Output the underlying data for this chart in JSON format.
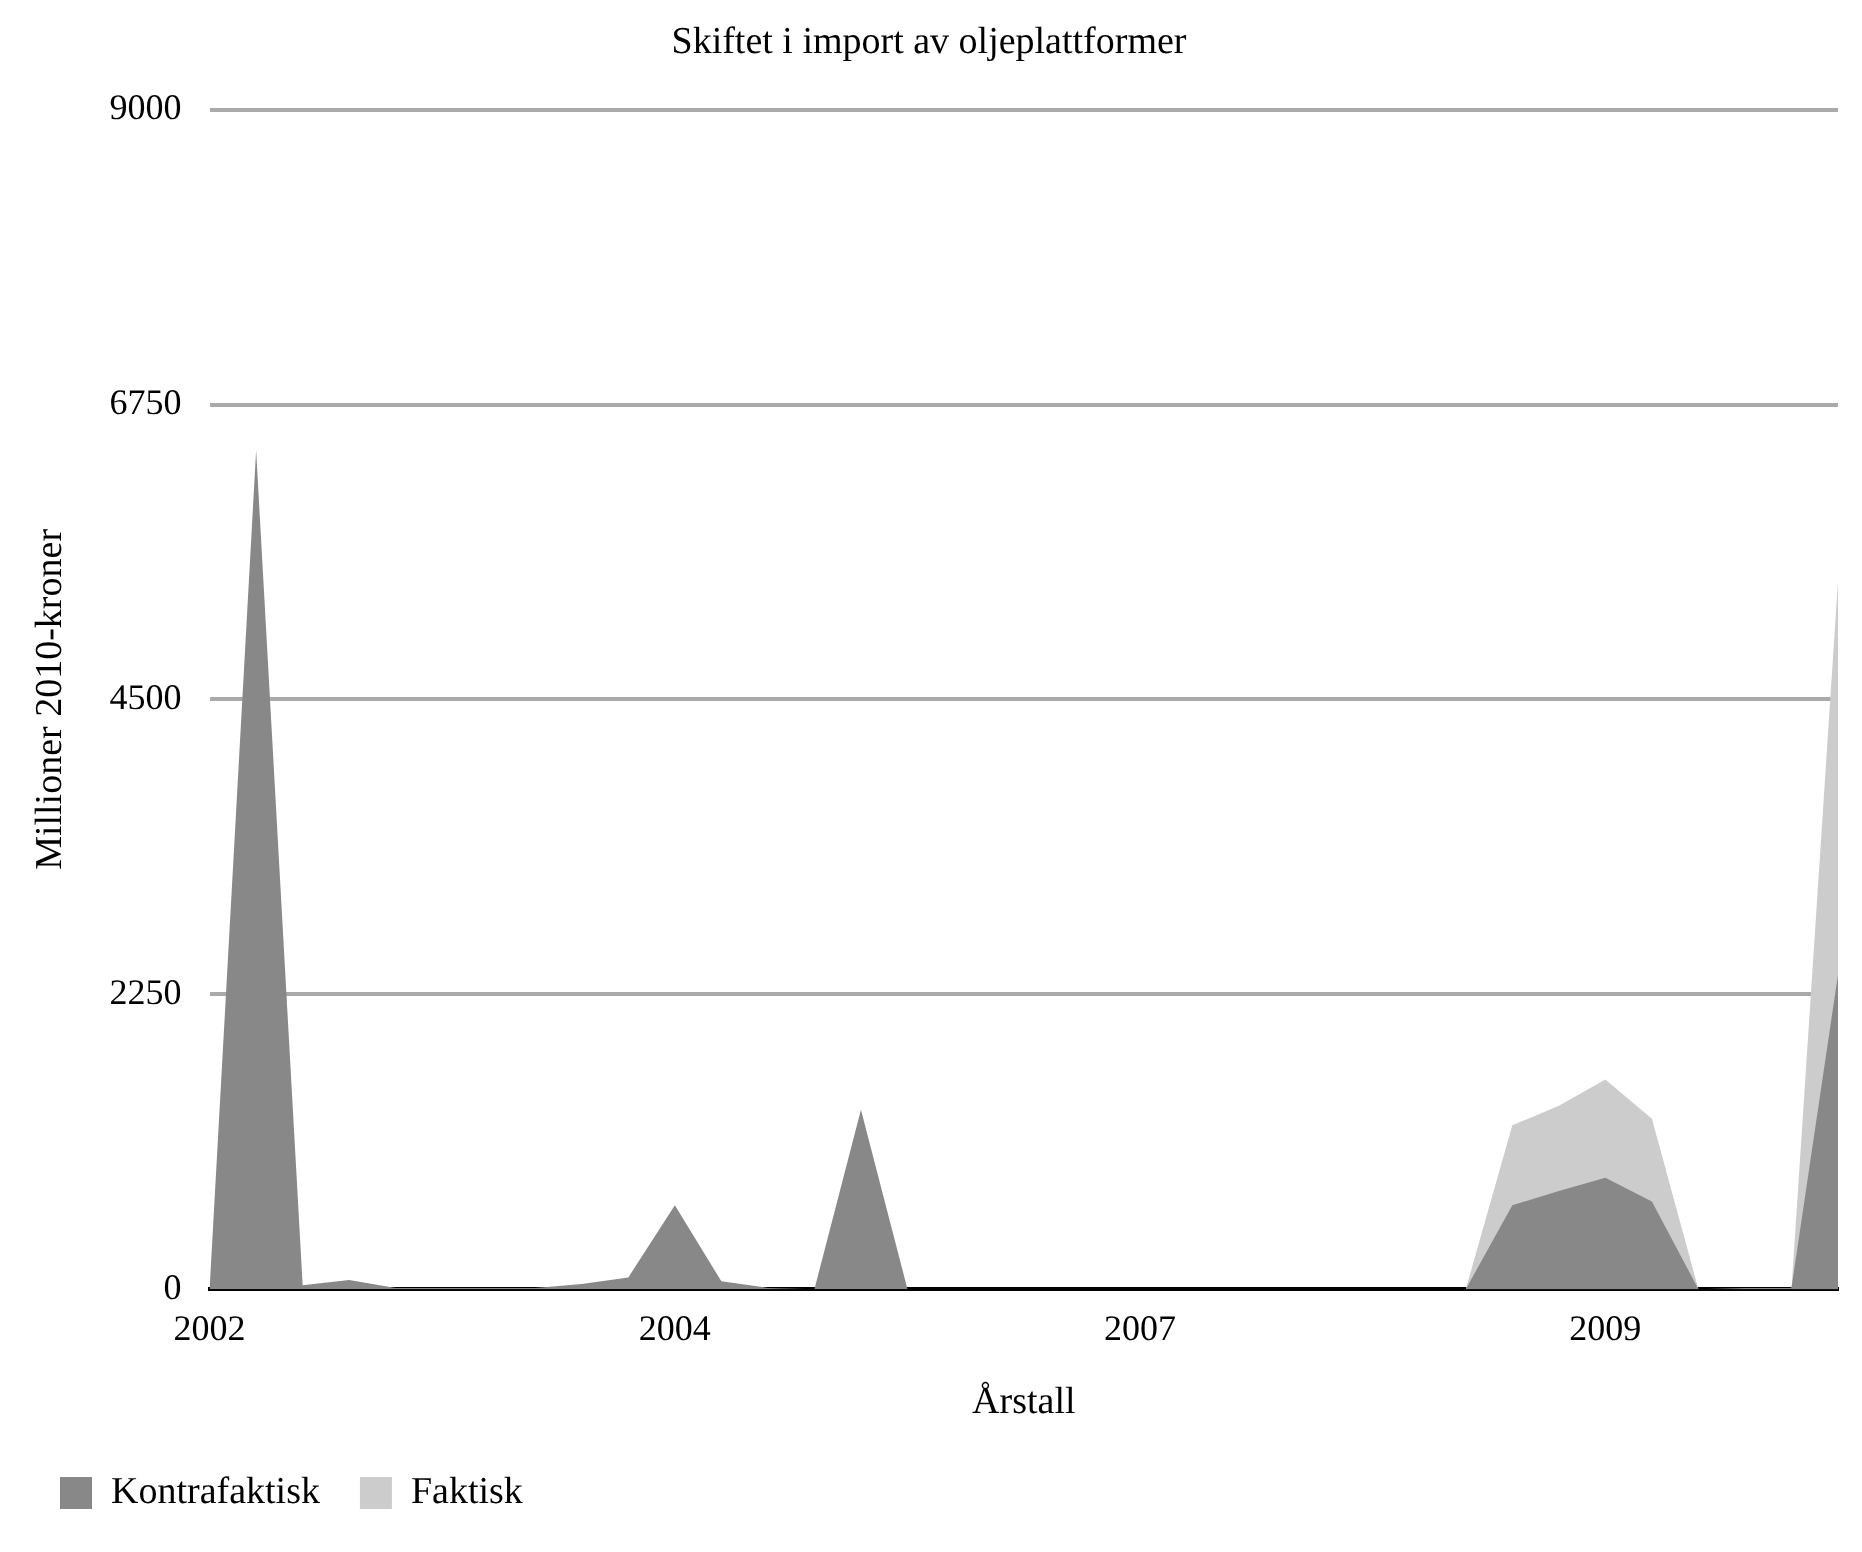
{
  "chart_data": {
    "type": "area",
    "title": "Skiftet i import av oljeplattformer",
    "xlabel": "Årstall",
    "ylabel": "Millioner 2010-kroner",
    "categories": [
      "2002",
      null,
      null,
      null,
      null,
      null,
      null,
      null,
      null,
      null,
      "2004",
      null,
      null,
      null,
      null,
      null,
      null,
      null,
      null,
      null,
      "2007",
      null,
      null,
      null,
      null,
      null,
      null,
      null,
      null,
      null,
      "2009",
      null,
      null,
      null,
      null,
      null
    ],
    "series": [
      {
        "name": "Kontrafaktisk",
        "color": "#888888",
        "values": [
          0,
          6400,
          30,
          70,
          10,
          10,
          10,
          10,
          40,
          90,
          640,
          60,
          10,
          0,
          1370,
          0,
          0,
          0,
          0,
          0,
          0,
          0,
          0,
          0,
          0,
          0,
          0,
          0,
          640,
          750,
          850,
          670,
          0,
          10,
          10,
          2400
        ]
      },
      {
        "name": "Faktisk",
        "color": "#cccccc",
        "values": [
          0,
          0,
          0,
          0,
          0,
          0,
          0,
          0,
          0,
          0,
          0,
          0,
          0,
          0,
          0,
          0,
          0,
          0,
          0,
          0,
          0,
          0,
          0,
          0,
          0,
          0,
          0,
          0,
          1250,
          1400,
          1600,
          1300,
          0,
          0,
          0,
          5400
        ]
      }
    ],
    "ylim": [
      0,
      9000
    ],
    "yticks": [
      0,
      2250,
      4500,
      6750,
      9000
    ],
    "grid": "y",
    "legend": "bottom left"
  }
}
